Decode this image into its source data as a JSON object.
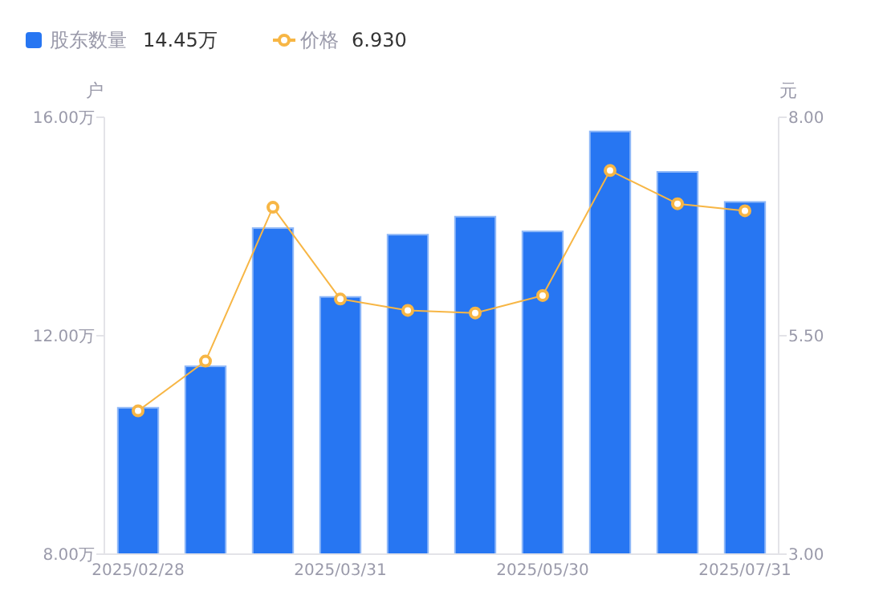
{
  "chart_data": {
    "type": "bar",
    "ylabel": "户",
    "y2label": "元",
    "categories": [
      "2025/02/28",
      null,
      null,
      "2025/03/31",
      null,
      null,
      "2025/05/30",
      null,
      null,
      "2025/07/31"
    ],
    "series": [
      {
        "name": "股东数量",
        "color": "#2776f2",
        "values": [
          10.68,
          11.44,
          13.97,
          12.71,
          13.85,
          14.18,
          13.91,
          15.74,
          15.0,
          14.45
        ]
      },
      {
        "name": "价格",
        "type": "line",
        "axis": "y2",
        "color": "#f7b645",
        "marker": "circle",
        "values": [
          4.64,
          5.21,
          6.97,
          5.92,
          5.79,
          5.76,
          5.96,
          7.39,
          7.01,
          6.93
        ]
      }
    ],
    "ylim": [
      8,
      16
    ],
    "yticks": [
      {
        "value": 8,
        "label": "8.00万"
      },
      {
        "value": 12,
        "label": "12.00万"
      },
      {
        "value": 16,
        "label": "16.00万"
      }
    ],
    "y2lim": [
      3,
      8
    ],
    "y2ticks": [
      {
        "value": 3,
        "label": "3.00"
      },
      {
        "value": 5.5,
        "label": "5.50"
      },
      {
        "value": 8,
        "label": "8.00"
      }
    ],
    "annotations": [
      "14.45万",
      "6.930"
    ],
    "legend": "top left",
    "grid": false
  }
}
